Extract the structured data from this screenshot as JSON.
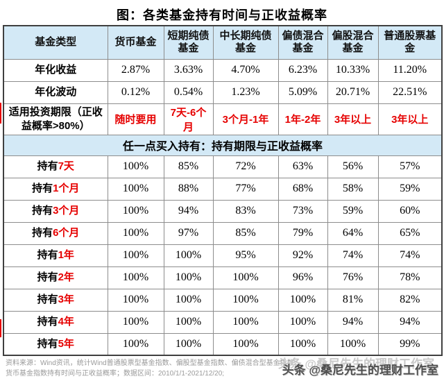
{
  "title": "图：各类基金持有时间与正收益概率",
  "table": {
    "columns": [
      "基金类型",
      "货币基金",
      "短期纯债基金",
      "中长期纯债基金",
      "偏债混合基金",
      "偏股混合基金",
      "普通股票基金"
    ],
    "stat_rows": [
      {
        "label": "年化收益",
        "values": [
          "2.87%",
          "3.63%",
          "4.70%",
          "6.23%",
          "10.33%",
          "11.20%"
        ]
      },
      {
        "label": "年化波动",
        "values": [
          "0.12%",
          "0.54%",
          "1.23%",
          "5.09%",
          "20.71%",
          "22.51%"
        ]
      }
    ],
    "horizon_row": {
      "label": "适用投资期限（正收益概率>80%）",
      "values": [
        "随时要用",
        "7天-6个月",
        "3个月-1年",
        "1年-2年",
        "3年以上",
        "3年以上"
      ]
    },
    "section_header": "任一点买入持有：持有期限与正收益概率",
    "holding_rows": [
      {
        "prefix": "持有",
        "duration": "7天",
        "values": [
          "100%",
          "85%",
          "72%",
          "63%",
          "56%",
          "57%"
        ]
      },
      {
        "prefix": "持有",
        "duration": "1个月",
        "values": [
          "100%",
          "88%",
          "77%",
          "68%",
          "58%",
          "59%"
        ]
      },
      {
        "prefix": "持有",
        "duration": "3个月",
        "values": [
          "100%",
          "94%",
          "83%",
          "73%",
          "59%",
          "60%"
        ]
      },
      {
        "prefix": "持有",
        "duration": "6个月",
        "values": [
          "100%",
          "97%",
          "85%",
          "79%",
          "64%",
          "65%"
        ]
      },
      {
        "prefix": "持有",
        "duration": "1年",
        "values": [
          "100%",
          "100%",
          "95%",
          "92%",
          "74%",
          "74%"
        ]
      },
      {
        "prefix": "持有",
        "duration": "2年",
        "values": [
          "100%",
          "100%",
          "100%",
          "96%",
          "76%",
          "78%"
        ]
      },
      {
        "prefix": "持有",
        "duration": "3年",
        "values": [
          "100%",
          "100%",
          "100%",
          "100%",
          "81%",
          "82%"
        ]
      },
      {
        "prefix": "持有",
        "duration": "4年",
        "values": [
          "100%",
          "100%",
          "100%",
          "100%",
          "94%",
          "94%"
        ]
      },
      {
        "prefix": "持有",
        "duration": "5年",
        "values": [
          "100%",
          "100%",
          "100%",
          "100%",
          "100%",
          "99%"
        ]
      }
    ]
  },
  "footnote": {
    "line1": "资料来源：Wind资讯，统计Wind普通股票型基金指数、偏股型基金指数、偏债混合型基金指数、",
    "line2": "货币基金指数持有时间与正收益概率；数据区间：2010/1/1-2021/12/20;"
  },
  "watermark": "头条 @桑尼先生的理财工作室",
  "colors": {
    "header_bg": "#d3e9f6",
    "accent_red": "#e60000",
    "border_dark": "#3f3f3f",
    "border_inner": "#8c8c8c",
    "footnote_gray": "#9a9a9a",
    "watermark_gray": "#4e4e4e"
  },
  "chart_data": {
    "type": "table",
    "title": "图：各类基金持有时间与正收益概率",
    "columns": [
      "基金类型",
      "货币基金",
      "短期纯债基金",
      "中长期纯债基金",
      "偏债混合基金",
      "偏股混合基金",
      "普通股票基金"
    ],
    "rows": [
      [
        "年化收益",
        "2.87%",
        "3.63%",
        "4.70%",
        "6.23%",
        "10.33%",
        "11.20%"
      ],
      [
        "年化波动",
        "0.12%",
        "0.54%",
        "1.23%",
        "5.09%",
        "20.71%",
        "22.51%"
      ],
      [
        "适用投资期限（正收益概率>80%）",
        "随时要用",
        "7天-6个月",
        "3个月-1年",
        "1年-2年",
        "3年以上",
        "3年以上"
      ],
      [
        "任一点买入持有：持有期限与正收益概率",
        "",
        "",
        "",
        "",
        "",
        ""
      ],
      [
        "持有7天",
        "100%",
        "85%",
        "72%",
        "63%",
        "56%",
        "57%"
      ],
      [
        "持有1个月",
        "100%",
        "88%",
        "77%",
        "68%",
        "58%",
        "59%"
      ],
      [
        "持有3个月",
        "100%",
        "94%",
        "83%",
        "73%",
        "59%",
        "60%"
      ],
      [
        "持有6个月",
        "100%",
        "97%",
        "85%",
        "79%",
        "64%",
        "65%"
      ],
      [
        "持有1年",
        "100%",
        "100%",
        "95%",
        "92%",
        "74%",
        "74%"
      ],
      [
        "持有2年",
        "100%",
        "100%",
        "100%",
        "96%",
        "76%",
        "78%"
      ],
      [
        "持有3年",
        "100%",
        "100%",
        "100%",
        "100%",
        "81%",
        "82%"
      ],
      [
        "持有4年",
        "100%",
        "100%",
        "100%",
        "100%",
        "94%",
        "94%"
      ],
      [
        "持有5年",
        "100%",
        "100%",
        "100%",
        "100%",
        "100%",
        "99%"
      ]
    ]
  }
}
